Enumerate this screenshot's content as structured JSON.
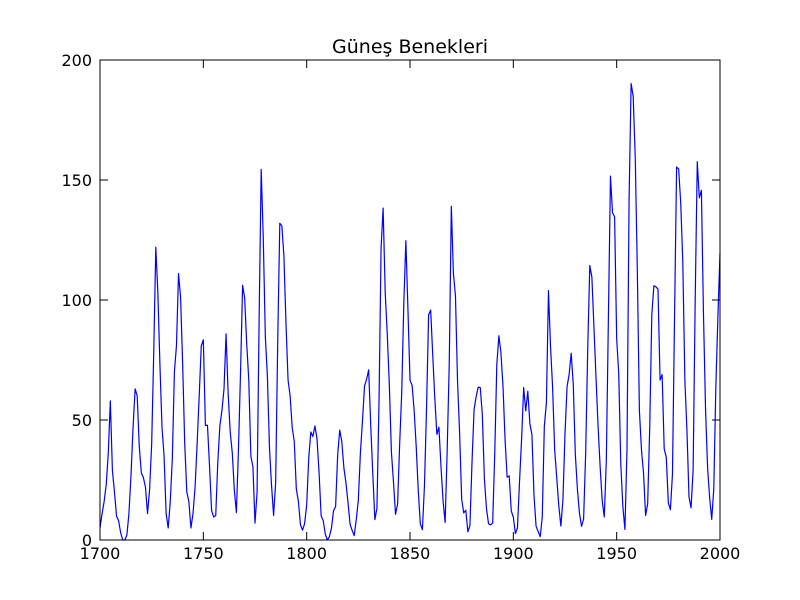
{
  "chart_data": {
    "type": "line",
    "title": "Güneş Benekleri",
    "xlabel": "",
    "ylabel": "",
    "xlim": [
      1700,
      2000
    ],
    "ylim": [
      0,
      200
    ],
    "x_ticks": [
      1700,
      1750,
      1800,
      1850,
      1900,
      1950,
      2000
    ],
    "y_ticks": [
      0,
      50,
      100,
      150,
      200
    ],
    "x_tick_labels": [
      "1700",
      "1750",
      "1800",
      "1850",
      "1900",
      "1950",
      "2000"
    ],
    "y_tick_labels": [
      "0",
      "50",
      "100",
      "150",
      "200"
    ],
    "grid": false,
    "legend": "none",
    "series": [
      {
        "color": "#0000ff",
        "x": [
          1700,
          1701,
          1702,
          1703,
          1704,
          1705,
          1706,
          1707,
          1708,
          1709,
          1710,
          1711,
          1712,
          1713,
          1714,
          1715,
          1716,
          1717,
          1718,
          1719,
          1720,
          1721,
          1722,
          1723,
          1724,
          1725,
          1726,
          1727,
          1728,
          1729,
          1730,
          1731,
          1732,
          1733,
          1734,
          1735,
          1736,
          1737,
          1738,
          1739,
          1740,
          1741,
          1742,
          1743,
          1744,
          1745,
          1746,
          1747,
          1748,
          1749,
          1750,
          1751,
          1752,
          1753,
          1754,
          1755,
          1756,
          1757,
          1758,
          1759,
          1760,
          1761,
          1762,
          1763,
          1764,
          1765,
          1766,
          1767,
          1768,
          1769,
          1770,
          1771,
          1772,
          1773,
          1774,
          1775,
          1776,
          1777,
          1778,
          1779,
          1780,
          1781,
          1782,
          1783,
          1784,
          1785,
          1786,
          1787,
          1788,
          1789,
          1790,
          1791,
          1792,
          1793,
          1794,
          1795,
          1796,
          1797,
          1798,
          1799,
          1800,
          1801,
          1802,
          1803,
          1804,
          1805,
          1806,
          1807,
          1808,
          1809,
          1810,
          1811,
          1812,
          1813,
          1814,
          1815,
          1816,
          1817,
          1818,
          1819,
          1820,
          1821,
          1822,
          1823,
          1824,
          1825,
          1826,
          1827,
          1828,
          1829,
          1830,
          1831,
          1832,
          1833,
          1834,
          1835,
          1836,
          1837,
          1838,
          1839,
          1840,
          1841,
          1842,
          1843,
          1844,
          1845,
          1846,
          1847,
          1848,
          1849,
          1850,
          1851,
          1852,
          1853,
          1854,
          1855,
          1856,
          1857,
          1858,
          1859,
          1860,
          1861,
          1862,
          1863,
          1864,
          1865,
          1866,
          1867,
          1868,
          1869,
          1870,
          1871,
          1872,
          1873,
          1874,
          1875,
          1876,
          1877,
          1878,
          1879,
          1880,
          1881,
          1882,
          1883,
          1884,
          1885,
          1886,
          1887,
          1888,
          1889,
          1890,
          1891,
          1892,
          1893,
          1894,
          1895,
          1896,
          1897,
          1898,
          1899,
          1900,
          1901,
          1902,
          1903,
          1904,
          1905,
          1906,
          1907,
          1908,
          1909,
          1910,
          1911,
          1912,
          1913,
          1914,
          1915,
          1916,
          1917,
          1918,
          1919,
          1920,
          1921,
          1922,
          1923,
          1924,
          1925,
          1926,
          1927,
          1928,
          1929,
          1930,
          1931,
          1932,
          1933,
          1934,
          1935,
          1936,
          1937,
          1938,
          1939,
          1940,
          1941,
          1942,
          1943,
          1944,
          1945,
          1946,
          1947,
          1948,
          1949,
          1950,
          1951,
          1952,
          1953,
          1954,
          1955,
          1956,
          1957,
          1958,
          1959,
          1960,
          1961,
          1962,
          1963,
          1964,
          1965,
          1966,
          1967,
          1968,
          1969,
          1970,
          1971,
          1972,
          1973,
          1974,
          1975,
          1976,
          1977,
          1978,
          1979,
          1980,
          1981,
          1982,
          1983,
          1984,
          1985,
          1986,
          1987,
          1988,
          1989,
          1990,
          1991,
          1992,
          1993,
          1994,
          1995,
          1996,
          1997,
          1998,
          1999,
          2000
        ],
        "values": [
          5,
          11,
          16,
          23,
          36,
          58,
          29,
          20,
          10,
          8,
          3,
          0,
          0,
          2,
          11,
          27,
          47,
          63,
          60,
          39,
          28,
          26,
          22,
          11,
          21,
          40,
          78,
          122,
          103,
          73,
          47,
          35,
          11,
          5,
          16,
          34,
          70,
          81,
          111,
          101,
          73,
          40,
          20,
          16,
          5,
          11,
          22,
          40,
          60,
          80.9,
          83.4,
          47.7,
          47.8,
          30.7,
          12.2,
          9.6,
          10.2,
          32.4,
          47.6,
          54,
          62.9,
          85.9,
          61.2,
          45.1,
          36.4,
          20.9,
          11.4,
          37.8,
          69.8,
          106.1,
          100.8,
          81.6,
          66.5,
          34.8,
          30.6,
          7,
          19.8,
          92.5,
          154.4,
          125.9,
          84.8,
          68.1,
          38.5,
          22.8,
          10.2,
          24.1,
          82.9,
          132,
          130.9,
          118.1,
          89.9,
          66.6,
          60,
          46.9,
          41,
          21.3,
          16,
          6.4,
          4.1,
          6.8,
          14.5,
          34,
          45,
          43.1,
          47.5,
          42.2,
          28.1,
          10.1,
          8.1,
          2.5,
          0,
          1.4,
          5,
          12.2,
          13.9,
          35.4,
          45.8,
          41,
          30.1,
          23.9,
          15.6,
          6.6,
          4,
          1.8,
          8.5,
          16.6,
          36.3,
          49.6,
          64.2,
          67,
          70.9,
          47.8,
          27.5,
          8.5,
          13.2,
          56.9,
          121.5,
          138.3,
          103.2,
          85.7,
          64.6,
          36.7,
          24.2,
          10.7,
          15,
          40.1,
          61.5,
          98.5,
          124.7,
          96.3,
          66.6,
          64.5,
          54.1,
          39,
          20.6,
          6.7,
          4.3,
          22.7,
          54.8,
          93.8,
          95.8,
          77.2,
          59.1,
          44,
          47,
          30.5,
          16.3,
          7.3,
          37.6,
          74,
          139,
          111.2,
          101.6,
          66.2,
          44.7,
          17,
          11.3,
          12.4,
          3.4,
          6,
          32.3,
          54.3,
          59.7,
          63.7,
          63.5,
          52.2,
          25.4,
          13.1,
          6.8,
          6.3,
          7.1,
          35.6,
          73,
          85.1,
          78,
          64,
          41.8,
          26.2,
          26.7,
          12.1,
          9.5,
          2.7,
          5,
          24.4,
          42,
          63.5,
          53.8,
          62,
          48.5,
          43.9,
          18.6,
          5.7,
          3.6,
          1.4,
          9.6,
          47.4,
          57.1,
          103.9,
          80.6,
          63.6,
          37.6,
          26.1,
          14.2,
          5.8,
          16.7,
          44.3,
          63.9,
          69,
          77.8,
          64.9,
          35.7,
          21.2,
          11.1,
          5.7,
          8.7,
          36.1,
          79.7,
          114.4,
          109.6,
          88.8,
          67.8,
          47.5,
          30.6,
          16.3,
          9.6,
          33.2,
          92.6,
          151.6,
          136.3,
          134.7,
          83.9,
          69.4,
          31.5,
          13.9,
          4.4,
          38,
          141.7,
          190.2,
          184.8,
          159,
          112.3,
          53.9,
          37.6,
          27.9,
          10.2,
          15.1,
          47,
          93.8,
          105.9,
          105.5,
          104.5,
          66.6,
          68.9,
          38,
          34.5,
          15.5,
          12.6,
          27.5,
          92.5,
          155.4,
          154.6,
          140.4,
          115.9,
          66.6,
          45.9,
          17.9,
          13.4,
          29.2,
          100.2,
          157.6,
          142.6,
          145.7,
          94.3,
          54.6,
          29.9,
          17.5,
          8.6,
          21.5,
          64.3,
          93.3,
          119.6
        ]
      }
    ]
  }
}
